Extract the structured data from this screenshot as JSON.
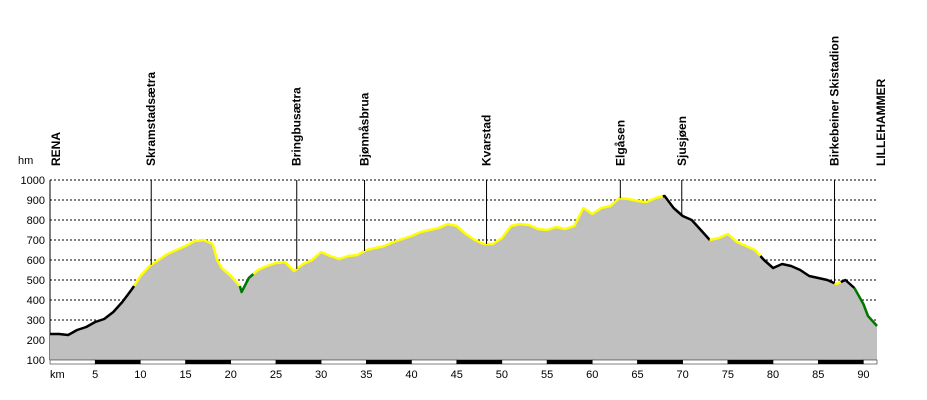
{
  "chart_data": {
    "type": "area",
    "ylabel": "hm",
    "xlabel": "km",
    "ylim": [
      100,
      1000
    ],
    "xlim": [
      0,
      91.5
    ],
    "yticks": [
      100,
      200,
      300,
      400,
      500,
      600,
      700,
      800,
      900,
      1000
    ],
    "xticks": [
      5,
      10,
      15,
      20,
      25,
      30,
      35,
      40,
      45,
      50,
      55,
      60,
      65,
      70,
      75,
      80,
      85,
      90
    ],
    "grid": true,
    "fill_color": "#c0c0c0",
    "segment_colors": {
      "black": "#000000",
      "yellow": "#ffff00",
      "green": "#007700"
    },
    "places": [
      {
        "name": "RENA",
        "km": 0
      },
      {
        "name": "Skramstadsætra",
        "km": 11.2
      },
      {
        "name": "Bringbusætra",
        "km": 27.3
      },
      {
        "name": "Bjønnåsbrua",
        "km": 34.8
      },
      {
        "name": "Kvarstad",
        "km": 48.3
      },
      {
        "name": "Elgåsen",
        "km": 63.1
      },
      {
        "name": "Sjusjøen",
        "km": 69.9
      },
      {
        "name": "Birkebeiner Skistadion",
        "km": 86.8
      },
      {
        "name": "LILLEHAMMER",
        "km": 91.5
      }
    ],
    "profile": [
      [
        0,
        230
      ],
      [
        1,
        230
      ],
      [
        2,
        225
      ],
      [
        3,
        250
      ],
      [
        4,
        265
      ],
      [
        5,
        290
      ],
      [
        6,
        305
      ],
      [
        7,
        340
      ],
      [
        8,
        390
      ],
      [
        9,
        450
      ],
      [
        9.3,
        470
      ],
      [
        10,
        520
      ],
      [
        11,
        570
      ],
      [
        12,
        600
      ],
      [
        13,
        630
      ],
      [
        14,
        650
      ],
      [
        15,
        670
      ],
      [
        16,
        695
      ],
      [
        17,
        700
      ],
      [
        18,
        680
      ],
      [
        18.5,
        600
      ],
      [
        19,
        560
      ],
      [
        20,
        520
      ],
      [
        21,
        470
      ],
      [
        21.2,
        440
      ],
      [
        22,
        510
      ],
      [
        23,
        550
      ],
      [
        24,
        570
      ],
      [
        25,
        585
      ],
      [
        26,
        590
      ],
      [
        27,
        545
      ],
      [
        28,
        580
      ],
      [
        29,
        600
      ],
      [
        30,
        640
      ],
      [
        31,
        620
      ],
      [
        32,
        605
      ],
      [
        33,
        620
      ],
      [
        34,
        625
      ],
      [
        35,
        650
      ],
      [
        36,
        660
      ],
      [
        37,
        670
      ],
      [
        38,
        690
      ],
      [
        39,
        705
      ],
      [
        40,
        720
      ],
      [
        41,
        740
      ],
      [
        42,
        750
      ],
      [
        43,
        760
      ],
      [
        44,
        780
      ],
      [
        45,
        770
      ],
      [
        46,
        730
      ],
      [
        47,
        700
      ],
      [
        48,
        680
      ],
      [
        49,
        680
      ],
      [
        50,
        710
      ],
      [
        51,
        770
      ],
      [
        52,
        780
      ],
      [
        53,
        775
      ],
      [
        54,
        755
      ],
      [
        55,
        750
      ],
      [
        56,
        765
      ],
      [
        57,
        755
      ],
      [
        58,
        770
      ],
      [
        59,
        860
      ],
      [
        60,
        830
      ],
      [
        61,
        860
      ],
      [
        62,
        870
      ],
      [
        63,
        910
      ],
      [
        64,
        905
      ],
      [
        65,
        895
      ],
      [
        66,
        890
      ],
      [
        67,
        910
      ],
      [
        68,
        920
      ],
      [
        69,
        860
      ],
      [
        70,
        820
      ],
      [
        71,
        800
      ],
      [
        72,
        750
      ],
      [
        73,
        700
      ],
      [
        74,
        710
      ],
      [
        75,
        730
      ],
      [
        76,
        690
      ],
      [
        77,
        670
      ],
      [
        78,
        650
      ],
      [
        79,
        600
      ],
      [
        80,
        560
      ],
      [
        81,
        580
      ],
      [
        82,
        570
      ],
      [
        83,
        550
      ],
      [
        84,
        520
      ],
      [
        85,
        510
      ],
      [
        86,
        500
      ],
      [
        87,
        480
      ],
      [
        88,
        500
      ],
      [
        89,
        460
      ],
      [
        90,
        380
      ],
      [
        90.5,
        320
      ],
      [
        91.5,
        270
      ]
    ],
    "segments": [
      {
        "color": "black",
        "from": 0,
        "to": 9.3
      },
      {
        "color": "yellow",
        "from": 9.3,
        "to": 21
      },
      {
        "color": "green",
        "from": 21,
        "to": 22.5
      },
      {
        "color": "yellow",
        "from": 22.5,
        "to": 67.8
      },
      {
        "color": "black",
        "from": 67.8,
        "to": 73
      },
      {
        "color": "yellow",
        "from": 73,
        "to": 78.6
      },
      {
        "color": "black",
        "from": 78.6,
        "to": 86.8
      },
      {
        "color": "yellow",
        "from": 86.8,
        "to": 87.5
      },
      {
        "color": "black",
        "from": 87.5,
        "to": 89
      },
      {
        "color": "green",
        "from": 89,
        "to": 91.5
      }
    ]
  }
}
